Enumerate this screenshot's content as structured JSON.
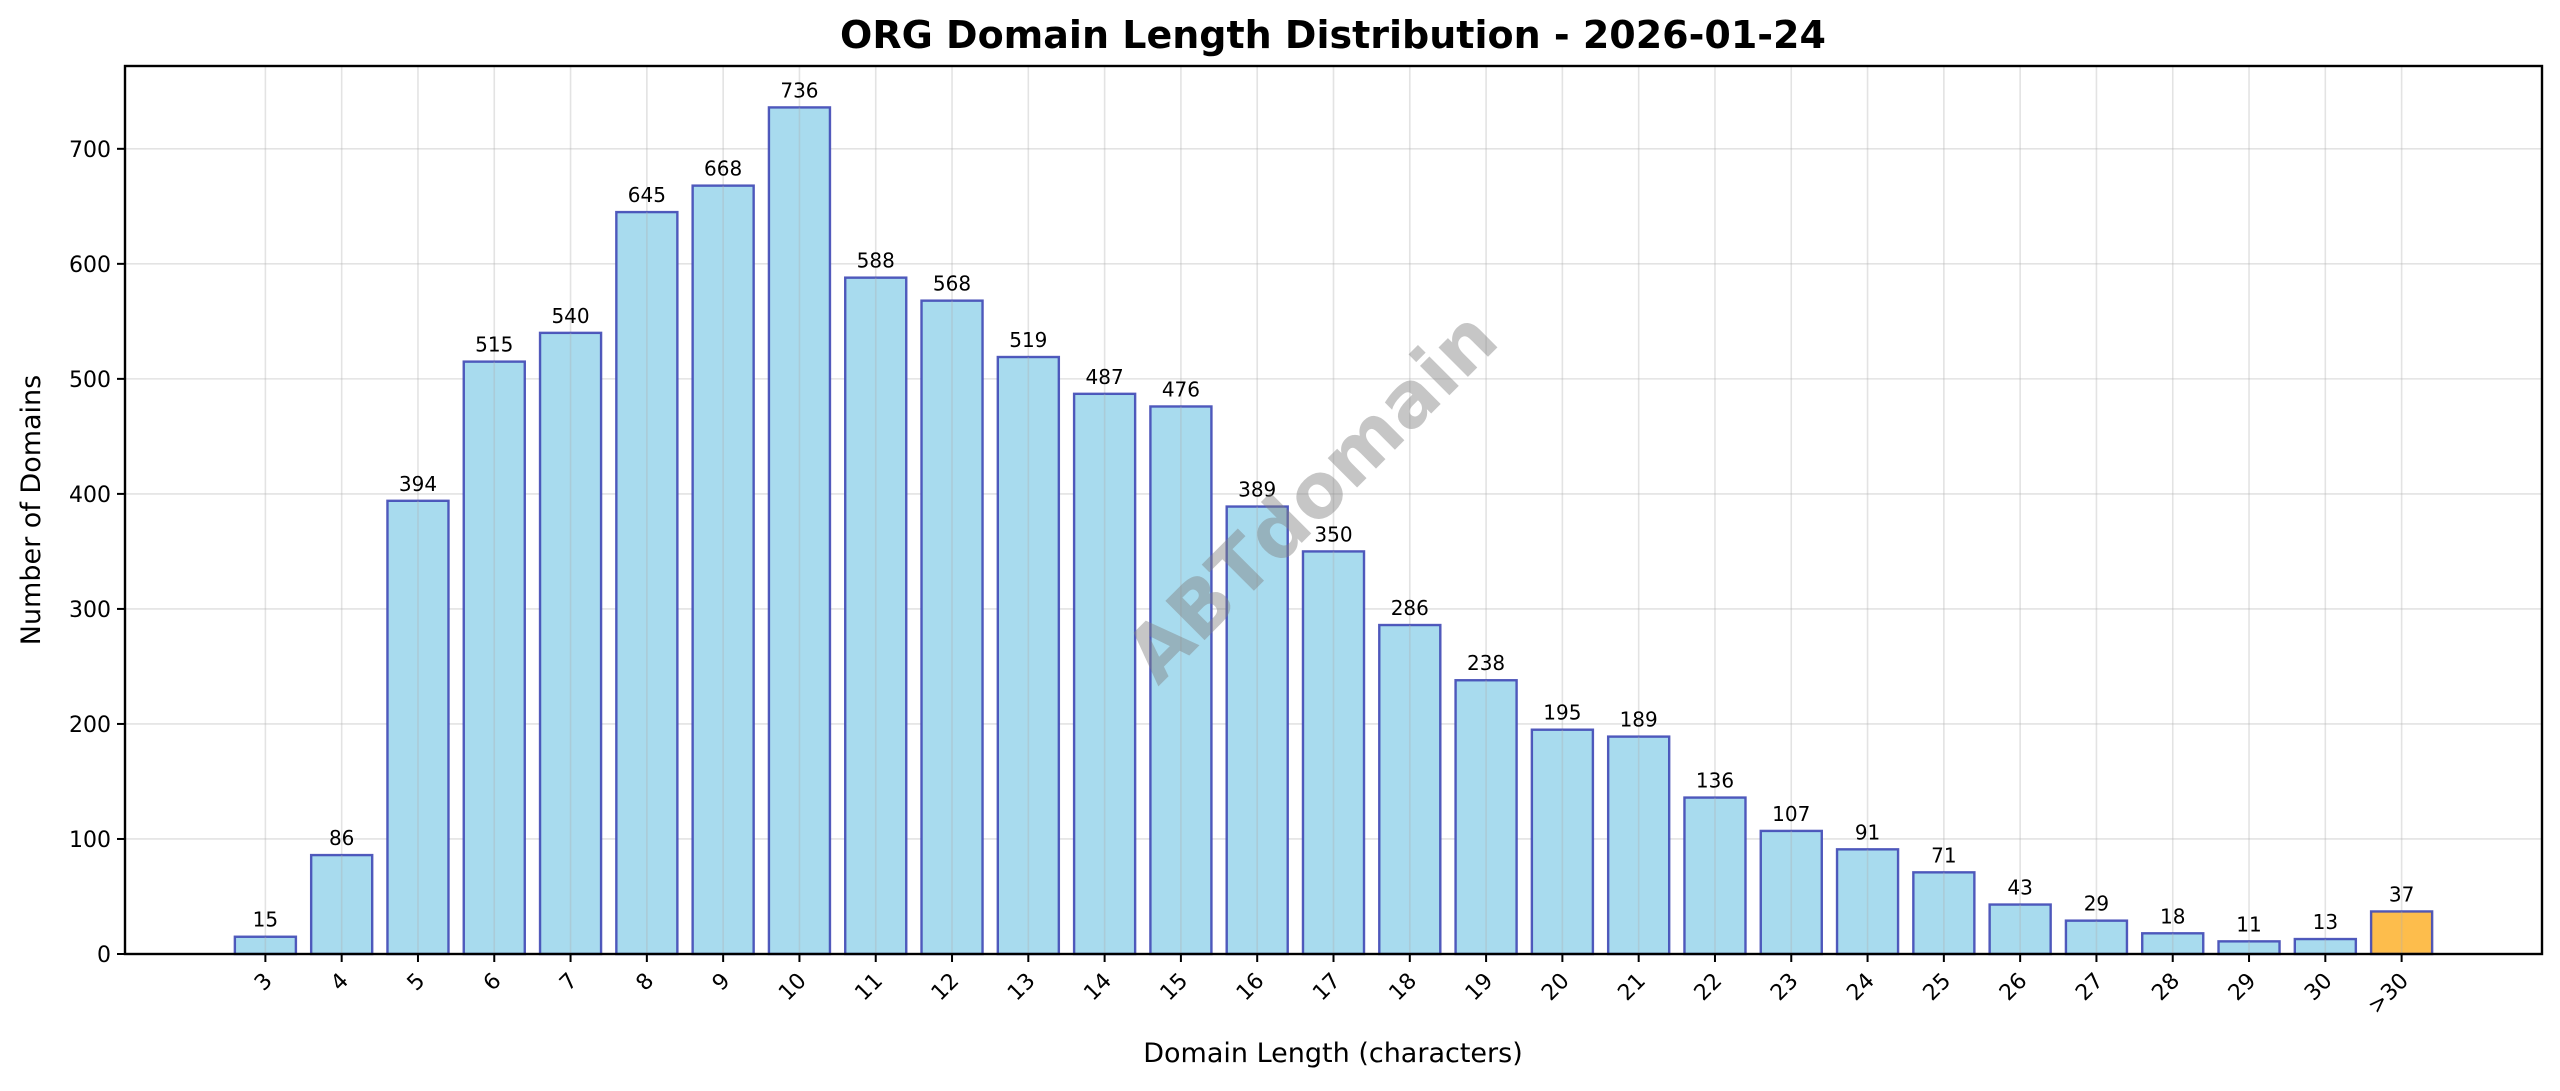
{
  "chart_data": {
    "type": "bar",
    "title": "ORG Domain Length Distribution - 2026-01-24",
    "xlabel": "Domain Length (characters)",
    "ylabel": "Number of Domains",
    "categories": [
      "3",
      "4",
      "5",
      "6",
      "7",
      "8",
      "9",
      "10",
      "11",
      "12",
      "13",
      "14",
      "15",
      "16",
      "17",
      "18",
      "19",
      "20",
      "21",
      "22",
      "23",
      "24",
      "25",
      "26",
      "27",
      "28",
      "29",
      "30",
      ">30"
    ],
    "values": [
      15,
      86,
      394,
      515,
      540,
      645,
      668,
      736,
      588,
      568,
      519,
      487,
      476,
      389,
      350,
      286,
      238,
      195,
      189,
      136,
      107,
      91,
      71,
      43,
      29,
      18,
      11,
      13,
      37
    ],
    "ylim": [
      0,
      772
    ],
    "yticks": [
      0,
      100,
      200,
      300,
      400,
      500,
      600,
      700
    ],
    "grid": true,
    "colors": {
      "bar": "#a8dbee",
      "bar_edge": "#3f48b5",
      "highlight_bar": "#fdbd4c",
      "highlight_category": ">30"
    },
    "watermark": "ABTdomain"
  }
}
